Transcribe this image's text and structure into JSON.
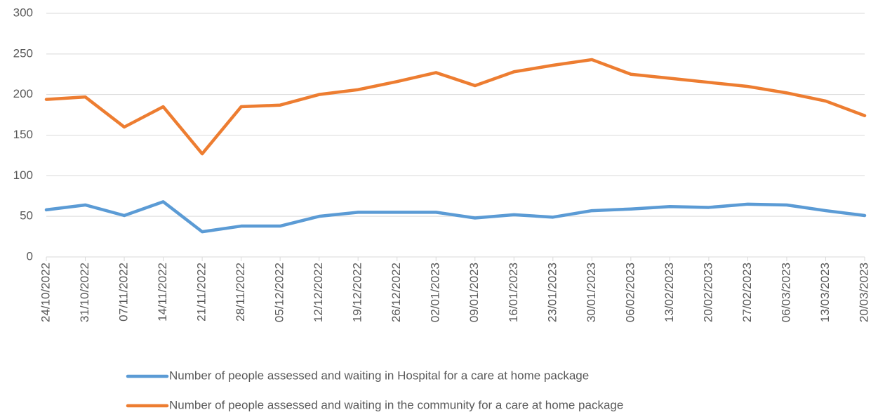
{
  "chart_data": {
    "type": "line",
    "categories": [
      "24/10/2022",
      "31/10/2022",
      "07/11/2022",
      "14/11/2022",
      "21/11/2022",
      "28/11/2022",
      "05/12/2022",
      "12/12/2022",
      "19/12/2022",
      "26/12/2022",
      "02/01/2023",
      "09/01/2023",
      "16/01/2023",
      "23/01/2023",
      "30/01/2023",
      "06/02/2023",
      "13/02/2023",
      "20/02/2023",
      "27/02/2023",
      "06/03/2023",
      "13/03/2023",
      "20/03/2023"
    ],
    "series": [
      {
        "name": "Number of people assessed and waiting in Hospital for a care at home package",
        "color": "#5b9bd5",
        "values": [
          58,
          64,
          51,
          68,
          31,
          38,
          38,
          50,
          55,
          55,
          55,
          48,
          52,
          49,
          57,
          59,
          62,
          61,
          65,
          64,
          57,
          51
        ]
      },
      {
        "name": "Number of people assessed and waiting in the community for a care at home package",
        "color": "#ed7d31",
        "values": [
          194,
          197,
          160,
          185,
          127,
          185,
          187,
          200,
          206,
          216,
          227,
          211,
          228,
          236,
          243,
          225,
          220,
          215,
          210,
          202,
          192,
          174
        ]
      }
    ],
    "ylim": [
      0,
      300
    ],
    "yticks": [
      0,
      50,
      100,
      150,
      200,
      250,
      300
    ],
    "grid": true,
    "legend": "bottom"
  }
}
